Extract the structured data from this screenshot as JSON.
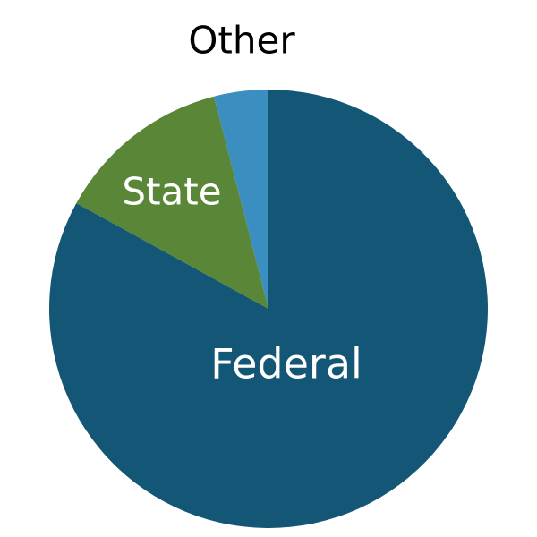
{
  "chart_data": {
    "type": "pie",
    "slices": [
      {
        "label": "Federal",
        "value": 83,
        "color": "#135675"
      },
      {
        "label": "State",
        "value": 13,
        "color": "#5A8638"
      },
      {
        "label": "Other",
        "value": 4,
        "color": "#3A8EC0"
      }
    ],
    "start_angle_deg": 0,
    "direction": "clockwise",
    "labels": {
      "Federal": {
        "color": "#ffffff",
        "placement": "inside"
      },
      "State": {
        "color": "#ffffff",
        "placement": "inside"
      },
      "Other": {
        "color": "#000000",
        "placement": "outside-top"
      }
    }
  }
}
